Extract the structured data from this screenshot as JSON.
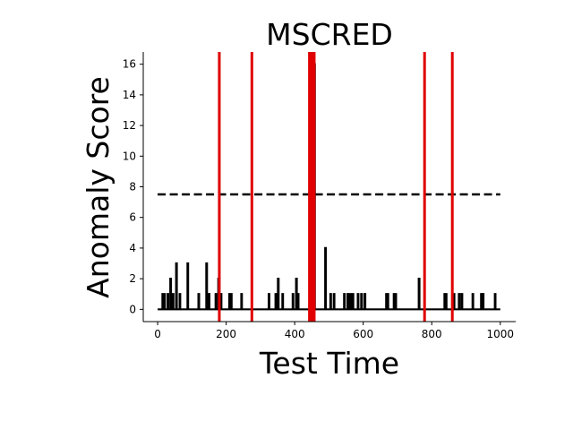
{
  "chart_data": {
    "type": "line",
    "title": "MSCRED",
    "xlabel": "Test Time",
    "ylabel": "Anomaly Score",
    "xlim": [
      -42,
      1045
    ],
    "ylim": [
      -0.8,
      16.8
    ],
    "x_ticks": [
      0,
      200,
      400,
      600,
      800,
      1000
    ],
    "y_ticks": [
      0,
      2,
      4,
      6,
      8,
      10,
      12,
      14,
      16
    ],
    "grid": false,
    "series": [
      {
        "style": "solid",
        "color": "#000000",
        "x_range": [
          0,
          1000
        ],
        "baseline": 0,
        "spikes": [
          [
            15,
            1
          ],
          [
            20,
            1
          ],
          [
            30,
            1
          ],
          [
            38,
            2
          ],
          [
            45,
            1
          ],
          [
            55,
            3
          ],
          [
            65,
            1
          ],
          [
            88,
            3
          ],
          [
            120,
            1
          ],
          [
            143,
            3
          ],
          [
            150,
            1
          ],
          [
            170,
            1
          ],
          [
            178,
            2
          ],
          [
            185,
            1
          ],
          [
            210,
            1
          ],
          [
            215,
            1
          ],
          [
            245,
            1
          ],
          [
            325,
            1
          ],
          [
            345,
            1
          ],
          [
            352,
            2
          ],
          [
            365,
            1
          ],
          [
            395,
            1
          ],
          [
            405,
            2
          ],
          [
            410,
            1
          ],
          [
            446,
            16
          ],
          [
            449,
            15
          ],
          [
            452,
            16
          ],
          [
            455,
            14
          ],
          [
            458,
            16
          ],
          [
            490,
            4
          ],
          [
            505,
            1
          ],
          [
            515,
            1
          ],
          [
            545,
            1
          ],
          [
            555,
            1
          ],
          [
            560,
            1
          ],
          [
            565,
            1
          ],
          [
            570,
            1
          ],
          [
            585,
            1
          ],
          [
            595,
            1
          ],
          [
            605,
            1
          ],
          [
            668,
            1
          ],
          [
            672,
            1
          ],
          [
            690,
            1
          ],
          [
            695,
            1
          ],
          [
            763,
            2
          ],
          [
            838,
            1
          ],
          [
            842,
            1
          ],
          [
            865,
            1
          ],
          [
            880,
            1
          ],
          [
            888,
            1
          ],
          [
            920,
            1
          ],
          [
            945,
            1
          ],
          [
            950,
            1
          ],
          [
            985,
            1
          ]
        ]
      },
      {
        "style": "dashed",
        "color": "#000000",
        "x": [
          0,
          1000
        ],
        "y": [
          7.5,
          7.5
        ]
      }
    ],
    "vlines": {
      "color": "#e00000",
      "x": [
        180,
        275,
        443,
        448,
        453,
        457,
        779,
        860
      ]
    }
  }
}
